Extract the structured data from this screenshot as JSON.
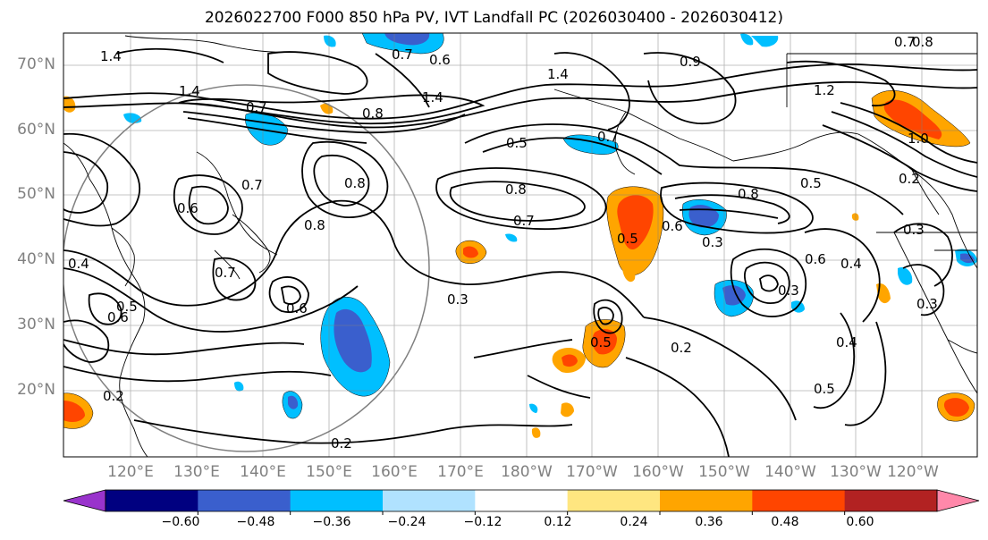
{
  "title": "2026022700 F000 850 hPa PV, IVT Landfall PC (2026030400 - 2026030412)",
  "latitude_labels": [
    "70°N",
    "60°N",
    "50°N",
    "40°N",
    "30°N",
    "20°N"
  ],
  "longitude_labels": [
    "120°E",
    "130°E",
    "140°E",
    "150°E",
    "160°E",
    "170°E",
    "180°W",
    "170°W",
    "160°W",
    "150°W",
    "140°W",
    "130°W",
    "120°W"
  ],
  "contour_labels": [
    "1.4",
    "1.4",
    "1.4",
    "1.4",
    "0.7",
    "0.6",
    "0.8",
    "0.7",
    "0.5",
    "0.8",
    "0.7",
    "0.7",
    "0.6",
    "0.8",
    "0.4",
    "0.7",
    "0.6",
    "0.3",
    "0.6",
    "0.5",
    "0.2",
    "0.2",
    "0.8",
    "0.5",
    "0.3",
    "0.8",
    "0.6",
    "0.4",
    "0.7",
    "0.5",
    "0.3",
    "0.3",
    "0.5",
    "0.2",
    "0.5",
    "0.4",
    "0.3",
    "1.2",
    "1.0",
    "0.8",
    "0.7",
    "0.9",
    "0.2",
    "0.6"
  ],
  "colorbar": {
    "tick_labels": [
      "−0.60",
      "−0.48",
      "−0.36",
      "−0.24",
      "−0.12",
      "0.12",
      "0.24",
      "0.36",
      "0.48",
      "0.60"
    ],
    "bins": [
      {
        "color": "#9933cc"
      },
      {
        "color": "#000080"
      },
      {
        "color": "#3a5fcd"
      },
      {
        "color": "#00bfff"
      },
      {
        "color": "#b0e2ff"
      },
      {
        "color": "#ffffff"
      },
      {
        "color": "#ffe680"
      },
      {
        "color": "#ffa500"
      },
      {
        "color": "#ff4500"
      },
      {
        "color": "#b22222"
      },
      {
        "color": "#ff88aa"
      }
    ]
  },
  "colors": {
    "contour": "#000000",
    "grid": "#808080",
    "axis_label": "#808080",
    "coastline": "#000000"
  }
}
